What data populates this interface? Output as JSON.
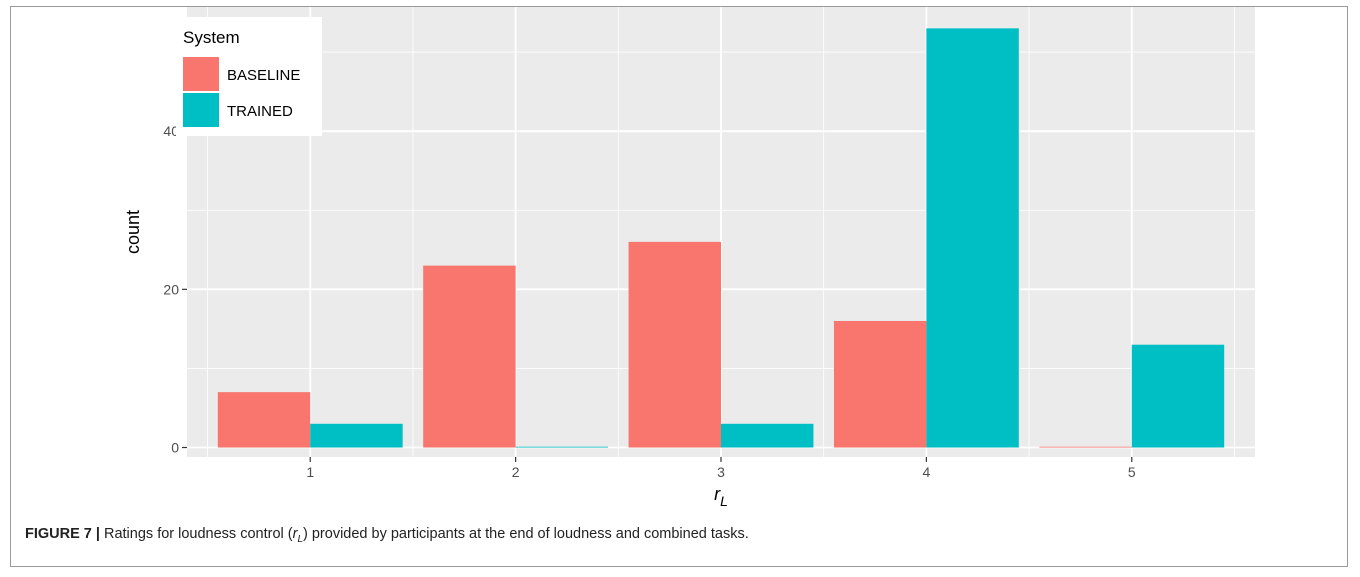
{
  "chart_data": {
    "type": "bar",
    "categories": [
      "1",
      "2",
      "3",
      "4",
      "5"
    ],
    "series": [
      {
        "name": "BASELINE",
        "values": [
          7,
          23,
          26,
          16,
          0
        ]
      },
      {
        "name": "TRAINED",
        "values": [
          3,
          0,
          3,
          53,
          13
        ]
      }
    ],
    "xlabel": "r",
    "xlabel_sub": "L",
    "ylabel": "count",
    "ylim": [
      -1.2,
      55.7
    ],
    "yticks": [
      0,
      20,
      40
    ],
    "legend_title": "System",
    "legend_position": "top-left",
    "grid": true
  },
  "colors": {
    "BASELINE": "#F8766D",
    "TRAINED": "#00BFC4",
    "panel": "#EBEBEB",
    "grid": "#FFFFFF"
  },
  "caption": {
    "label": "FIGURE 7 |",
    "text_before": " Ratings for loudness control (",
    "symbol": "r",
    "symbol_sub": "L",
    "text_after": ") provided by participants at the end of loudness and combined tasks."
  }
}
